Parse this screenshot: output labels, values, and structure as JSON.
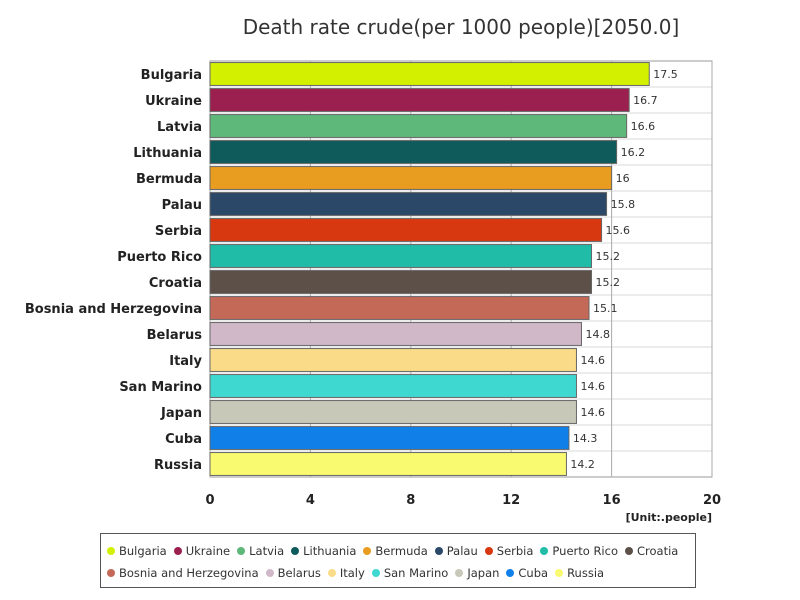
{
  "chart_data": {
    "type": "bar",
    "orientation": "horizontal",
    "title": "Death rate crude(per 1000 people)[2050.0]",
    "unit": "[Unit:.people]",
    "xlim": [
      0,
      20
    ],
    "ticks": [
      "0",
      "4",
      "8",
      "12",
      "16",
      "20"
    ],
    "categories": [
      "Bulgaria",
      "Ukraine",
      "Latvia",
      "Lithuania",
      "Bermuda",
      "Palau",
      "Serbia",
      "Puerto Rico",
      "Croatia",
      "Bosnia and Herzegovina",
      "Belarus",
      "Italy",
      "San Marino",
      "Japan",
      "Cuba",
      "Russia"
    ],
    "values": [
      17.5,
      16.7,
      16.6,
      16.2,
      16,
      15.8,
      15.6,
      15.2,
      15.2,
      15.1,
      14.8,
      14.6,
      14.6,
      14.6,
      14.3,
      14.2
    ],
    "value_labels": [
      "17.5",
      "16.7",
      "16.6",
      "16.2",
      "16",
      "15.8",
      "15.6",
      "15.2",
      "15.2",
      "15.1",
      "14.8",
      "14.6",
      "14.6",
      "14.6",
      "14.3",
      "14.2"
    ],
    "colors": [
      "#d2f000",
      "#9b2050",
      "#5db87a",
      "#0f5a5a",
      "#e89c20",
      "#2c4868",
      "#d83810",
      "#20bca8",
      "#5c5048",
      "#c46858",
      "#d0b8c8",
      "#fadc88",
      "#3ed8d0",
      "#c8c8b8",
      "#1080e8",
      "#fafa70"
    ],
    "grid": true,
    "legend_position": "bottom"
  }
}
